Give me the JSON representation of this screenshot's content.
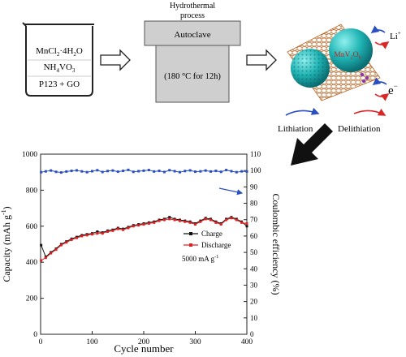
{
  "scheme": {
    "beaker_line1": "MnCl",
    "beaker_line1_sub": "2",
    "beaker_line1_rest": "·4H",
    "beaker_line1_sub2": "2",
    "beaker_line1_end": "O",
    "beaker_line2": "NH",
    "beaker_line2_sub": "4",
    "beaker_line2_rest": "VO",
    "beaker_line2_sub2": "3",
    "beaker_line3": "P123 + GO",
    "process_title_1": "Hydrothermal",
    "process_title_2": "process",
    "autoclave_label": "Autoclave",
    "autoclave_condition": "(180 °C for 12h)",
    "particle_label": "MnV",
    "particle_label_sub": "2",
    "particle_label_rest": "O",
    "particle_label_sub2": "6",
    "li_ion": "Li",
    "li_charge": "+",
    "electron": "e",
    "electron_charge": "−",
    "lithiation": "Lithiation",
    "delithiation": "Delithiation",
    "colors": {
      "graphene": "#b8692a",
      "particle": "#1fb3b3",
      "arrow_blue": "#2a4fbf",
      "arrow_red": "#d62828",
      "big_arrow": "#111111"
    }
  },
  "chart_data": {
    "type": "scatter",
    "xlabel": "Cycle number",
    "ylabel_left": "Capacity (mAh g",
    "ylabel_left_sup": "-1",
    "ylabel_left_end": ")",
    "ylabel_right": "Coulombic efficiency (%)",
    "xlim": [
      0,
      400
    ],
    "ylim_left": [
      0,
      1000
    ],
    "ylim_right": [
      0,
      110
    ],
    "x_ticks": [
      0,
      100,
      200,
      300,
      400
    ],
    "y_left_ticks": [
      0,
      200,
      400,
      600,
      800,
      1000
    ],
    "y_right_ticks": [
      0,
      10,
      20,
      30,
      40,
      50,
      60,
      70,
      80,
      90,
      100,
      110
    ],
    "legend": [
      "Charge",
      "Discharge"
    ],
    "annotation": "5000 mA g",
    "annotation_sup": "-1",
    "legend_position": "right-middle",
    "series": [
      {
        "name": "Charge",
        "axis": "left",
        "color": "#111111",
        "x": [
          1,
          10,
          20,
          30,
          40,
          50,
          60,
          70,
          80,
          90,
          100,
          110,
          120,
          130,
          140,
          150,
          160,
          170,
          180,
          190,
          200,
          210,
          220,
          230,
          240,
          250,
          260,
          270,
          280,
          290,
          300,
          310,
          320,
          330,
          340,
          350,
          360,
          370,
          380,
          390,
          400
        ],
        "values": [
          495,
          430,
          455,
          475,
          500,
          515,
          530,
          540,
          550,
          555,
          560,
          570,
          565,
          575,
          580,
          590,
          585,
          595,
          605,
          610,
          615,
          620,
          625,
          635,
          640,
          650,
          640,
          635,
          630,
          625,
          615,
          630,
          645,
          640,
          625,
          615,
          640,
          650,
          640,
          625,
          600
        ]
      },
      {
        "name": "Discharge",
        "axis": "left",
        "color": "#e02020",
        "x": [
          1,
          10,
          20,
          30,
          40,
          50,
          60,
          70,
          80,
          90,
          100,
          110,
          120,
          130,
          140,
          150,
          160,
          170,
          180,
          190,
          200,
          210,
          220,
          230,
          240,
          250,
          260,
          270,
          280,
          290,
          300,
          310,
          320,
          330,
          340,
          350,
          360,
          370,
          380,
          390,
          400
        ],
        "values": [
          410,
          425,
          450,
          470,
          495,
          510,
          525,
          535,
          545,
          550,
          555,
          560,
          560,
          570,
          575,
          585,
          580,
          590,
          600,
          605,
          610,
          615,
          620,
          630,
          635,
          640,
          635,
          630,
          625,
          620,
          610,
          625,
          640,
          635,
          620,
          610,
          635,
          645,
          635,
          620,
          615
        ]
      },
      {
        "name": "Coulombic efficiency",
        "axis": "right",
        "color": "#2a4fbf",
        "x": [
          1,
          10,
          20,
          30,
          40,
          50,
          60,
          70,
          80,
          90,
          100,
          110,
          120,
          130,
          140,
          150,
          160,
          170,
          180,
          190,
          200,
          210,
          220,
          230,
          240,
          250,
          260,
          270,
          280,
          290,
          300,
          310,
          320,
          330,
          340,
          350,
          360,
          370,
          380,
          390,
          400
        ],
        "values": [
          99,
          99.5,
          100,
          99.2,
          98.8,
          99.4,
          99.8,
          100.1,
          99.5,
          99.0,
          99.6,
          100.2,
          99.1,
          99.7,
          100.0,
          99.3,
          99.8,
          100.4,
          99.2,
          99.6,
          99.9,
          100.3,
          99.4,
          99.8,
          99.1,
          100.2,
          99.6,
          99.0,
          99.7,
          100.1,
          99.3,
          99.5,
          100.0,
          99.4,
          99.8,
          99.2,
          100.3,
          99.6,
          99.0,
          99.5,
          99.4
        ]
      }
    ]
  }
}
